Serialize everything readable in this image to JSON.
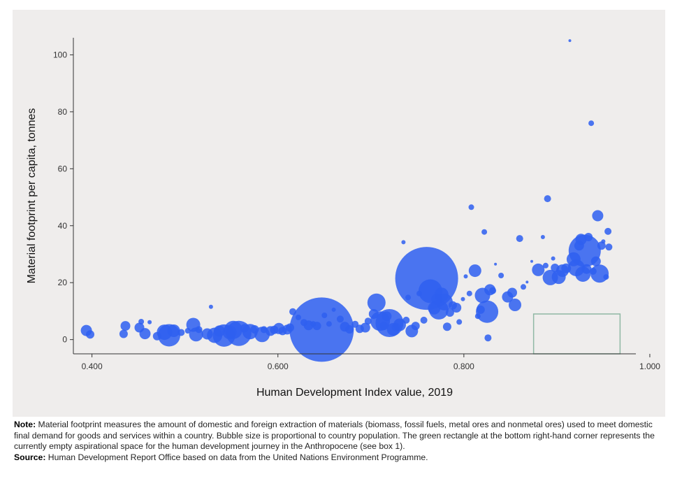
{
  "chart_data": {
    "type": "scatter",
    "xlabel": "Human Development Index value, 2019",
    "ylabel": "Material footprint per capita, tonnes",
    "xlim": [
      0.38,
      0.985
    ],
    "ylim": [
      -5,
      106
    ],
    "xticks": [
      0.4,
      0.6,
      0.8,
      1.0
    ],
    "xtick_labels": [
      "0.400",
      "0.600",
      "0.800",
      "1.000"
    ],
    "yticks": [
      0,
      20,
      40,
      60,
      80,
      100
    ],
    "ytick_labels": [
      "0",
      "20",
      "40",
      "60",
      "80",
      "100"
    ],
    "bubble_color": "#2f5ff0",
    "aspirational_box": {
      "x0": 0.875,
      "x1": 0.968,
      "y0": -5,
      "y1": 9,
      "color": "#8fb8a4"
    },
    "points": [
      {
        "x": 0.394,
        "y": 3.2,
        "r": 8
      },
      {
        "x": 0.398,
        "y": 1.8,
        "r": 6
      },
      {
        "x": 0.434,
        "y": 2.0,
        "r": 6
      },
      {
        "x": 0.436,
        "y": 4.8,
        "r": 7
      },
      {
        "x": 0.451,
        "y": 4.2,
        "r": 7
      },
      {
        "x": 0.453,
        "y": 6.3,
        "r": 4
      },
      {
        "x": 0.457,
        "y": 2.1,
        "r": 8
      },
      {
        "x": 0.462,
        "y": 6.1,
        "r": 3
      },
      {
        "x": 0.47,
        "y": 1.2,
        "r": 6
      },
      {
        "x": 0.478,
        "y": 2.6,
        "r": 11
      },
      {
        "x": 0.483,
        "y": 1.5,
        "r": 16
      },
      {
        "x": 0.488,
        "y": 3.1,
        "r": 9
      },
      {
        "x": 0.496,
        "y": 2.5,
        "r": 5
      },
      {
        "x": 0.503,
        "y": 3.1,
        "r": 4
      },
      {
        "x": 0.509,
        "y": 5.2,
        "r": 10
      },
      {
        "x": 0.512,
        "y": 1.8,
        "r": 10
      },
      {
        "x": 0.515,
        "y": 3.5,
        "r": 5
      },
      {
        "x": 0.524,
        "y": 2.0,
        "r": 8
      },
      {
        "x": 0.528,
        "y": 11.5,
        "r": 3
      },
      {
        "x": 0.532,
        "y": 1.5,
        "r": 11
      },
      {
        "x": 0.537,
        "y": 3.0,
        "r": 8
      },
      {
        "x": 0.542,
        "y": 1.4,
        "r": 16
      },
      {
        "x": 0.548,
        "y": 2.6,
        "r": 10
      },
      {
        "x": 0.552,
        "y": 3.4,
        "r": 13
      },
      {
        "x": 0.558,
        "y": 2.2,
        "r": 18
      },
      {
        "x": 0.564,
        "y": 4.0,
        "r": 6
      },
      {
        "x": 0.57,
        "y": 2.8,
        "r": 11
      },
      {
        "x": 0.575,
        "y": 3.6,
        "r": 6
      },
      {
        "x": 0.583,
        "y": 1.8,
        "r": 11
      },
      {
        "x": 0.585,
        "y": 3.5,
        "r": 5
      },
      {
        "x": 0.592,
        "y": 3.0,
        "r": 7
      },
      {
        "x": 0.596,
        "y": 3.4,
        "r": 6
      },
      {
        "x": 0.601,
        "y": 3.9,
        "r": 8
      },
      {
        "x": 0.605,
        "y": 3.0,
        "r": 6
      },
      {
        "x": 0.61,
        "y": 3.5,
        "r": 7
      },
      {
        "x": 0.613,
        "y": 4.2,
        "r": 6
      },
      {
        "x": 0.616,
        "y": 9.8,
        "r": 5
      },
      {
        "x": 0.622,
        "y": 7.8,
        "r": 4
      },
      {
        "x": 0.628,
        "y": 6.0,
        "r": 5
      },
      {
        "x": 0.633,
        "y": 5.0,
        "r": 7
      },
      {
        "x": 0.638,
        "y": 5.5,
        "r": 4
      },
      {
        "x": 0.642,
        "y": 4.8,
        "r": 6
      },
      {
        "x": 0.647,
        "y": 3.5,
        "r": 46
      },
      {
        "x": 0.65,
        "y": 8.5,
        "r": 4
      },
      {
        "x": 0.655,
        "y": 5.5,
        "r": 4
      },
      {
        "x": 0.66,
        "y": 10.5,
        "r": 3
      },
      {
        "x": 0.667,
        "y": 7.2,
        "r": 5
      },
      {
        "x": 0.672,
        "y": 4.5,
        "r": 7
      },
      {
        "x": 0.677,
        "y": 3.6,
        "r": 6
      },
      {
        "x": 0.683,
        "y": 5.4,
        "r": 5
      },
      {
        "x": 0.688,
        "y": 3.8,
        "r": 6
      },
      {
        "x": 0.694,
        "y": 4.2,
        "r": 7
      },
      {
        "x": 0.697,
        "y": 6.5,
        "r": 5
      },
      {
        "x": 0.703,
        "y": 9.0,
        "r": 7
      },
      {
        "x": 0.706,
        "y": 13.0,
        "r": 13
      },
      {
        "x": 0.71,
        "y": 6.5,
        "r": 14
      },
      {
        "x": 0.714,
        "y": 4.8,
        "r": 6
      },
      {
        "x": 0.717,
        "y": 8.2,
        "r": 7
      },
      {
        "x": 0.72,
        "y": 5.8,
        "r": 20
      },
      {
        "x": 0.724,
        "y": 3.6,
        "r": 9
      },
      {
        "x": 0.727,
        "y": 4.4,
        "r": 6
      },
      {
        "x": 0.731,
        "y": 5.2,
        "r": 9
      },
      {
        "x": 0.735,
        "y": 34.2,
        "r": 3
      },
      {
        "x": 0.738,
        "y": 6.8,
        "r": 5
      },
      {
        "x": 0.74,
        "y": 14.8,
        "r": 4
      },
      {
        "x": 0.744,
        "y": 3.0,
        "r": 9
      },
      {
        "x": 0.748,
        "y": 4.8,
        "r": 6
      },
      {
        "x": 0.752,
        "y": 16.2,
        "r": 4
      },
      {
        "x": 0.757,
        "y": 6.8,
        "r": 5
      },
      {
        "x": 0.76,
        "y": 21.5,
        "r": 45
      },
      {
        "x": 0.764,
        "y": 17.0,
        "r": 17
      },
      {
        "x": 0.768,
        "y": 11.0,
        "r": 9
      },
      {
        "x": 0.771,
        "y": 14.2,
        "r": 8
      },
      {
        "x": 0.773,
        "y": 10.5,
        "r": 14
      },
      {
        "x": 0.776,
        "y": 15.8,
        "r": 10
      },
      {
        "x": 0.779,
        "y": 13.2,
        "r": 12
      },
      {
        "x": 0.782,
        "y": 4.5,
        "r": 6
      },
      {
        "x": 0.785,
        "y": 9.5,
        "r": 6
      },
      {
        "x": 0.788,
        "y": 12.0,
        "r": 6
      },
      {
        "x": 0.792,
        "y": 11.2,
        "r": 7
      },
      {
        "x": 0.795,
        "y": 6.2,
        "r": 4
      },
      {
        "x": 0.799,
        "y": 14.2,
        "r": 3
      },
      {
        "x": 0.802,
        "y": 22.2,
        "r": 3
      },
      {
        "x": 0.806,
        "y": 16.2,
        "r": 4
      },
      {
        "x": 0.808,
        "y": 46.5,
        "r": 4
      },
      {
        "x": 0.812,
        "y": 24.2,
        "r": 9
      },
      {
        "x": 0.815,
        "y": 8.2,
        "r": 4
      },
      {
        "x": 0.818,
        "y": 10.5,
        "r": 6
      },
      {
        "x": 0.82,
        "y": 15.5,
        "r": 11
      },
      {
        "x": 0.822,
        "y": 37.8,
        "r": 4
      },
      {
        "x": 0.825,
        "y": 9.8,
        "r": 16
      },
      {
        "x": 0.826,
        "y": 0.6,
        "r": 5
      },
      {
        "x": 0.828,
        "y": 17.5,
        "r": 8
      },
      {
        "x": 0.831,
        "y": 17.2,
        "r": 5
      },
      {
        "x": 0.834,
        "y": 26.5,
        "r": 2
      },
      {
        "x": 0.84,
        "y": 22.5,
        "r": 4
      },
      {
        "x": 0.847,
        "y": 15.0,
        "r": 8
      },
      {
        "x": 0.852,
        "y": 16.5,
        "r": 7
      },
      {
        "x": 0.855,
        "y": 12.2,
        "r": 9
      },
      {
        "x": 0.86,
        "y": 35.5,
        "r": 5
      },
      {
        "x": 0.864,
        "y": 18.5,
        "r": 4
      },
      {
        "x": 0.868,
        "y": 20.2,
        "r": 2
      },
      {
        "x": 0.873,
        "y": 27.5,
        "r": 2
      },
      {
        "x": 0.88,
        "y": 24.5,
        "r": 9
      },
      {
        "x": 0.885,
        "y": 36.0,
        "r": 3
      },
      {
        "x": 0.888,
        "y": 26.0,
        "r": 4
      },
      {
        "x": 0.89,
        "y": 49.5,
        "r": 5
      },
      {
        "x": 0.893,
        "y": 21.8,
        "r": 11
      },
      {
        "x": 0.896,
        "y": 28.5,
        "r": 3
      },
      {
        "x": 0.898,
        "y": 25.2,
        "r": 6
      },
      {
        "x": 0.902,
        "y": 22.0,
        "r": 10
      },
      {
        "x": 0.906,
        "y": 24.2,
        "r": 9
      },
      {
        "x": 0.91,
        "y": 25.0,
        "r": 7
      },
      {
        "x": 0.914,
        "y": 105.0,
        "r": 2
      },
      {
        "x": 0.918,
        "y": 28.2,
        "r": 10
      },
      {
        "x": 0.921,
        "y": 25.2,
        "r": 12
      },
      {
        "x": 0.924,
        "y": 33.0,
        "r": 7
      },
      {
        "x": 0.926,
        "y": 35.2,
        "r": 8
      },
      {
        "x": 0.928,
        "y": 23.0,
        "r": 11
      },
      {
        "x": 0.93,
        "y": 31.2,
        "r": 23
      },
      {
        "x": 0.932,
        "y": 24.8,
        "r": 7
      },
      {
        "x": 0.934,
        "y": 36.0,
        "r": 6
      },
      {
        "x": 0.937,
        "y": 76.0,
        "r": 4
      },
      {
        "x": 0.939,
        "y": 24.0,
        "r": 5
      },
      {
        "x": 0.942,
        "y": 27.5,
        "r": 7
      },
      {
        "x": 0.944,
        "y": 43.5,
        "r": 8
      },
      {
        "x": 0.946,
        "y": 23.2,
        "r": 13
      },
      {
        "x": 0.948,
        "y": 33.0,
        "r": 6
      },
      {
        "x": 0.95,
        "y": 34.5,
        "r": 3
      },
      {
        "x": 0.953,
        "y": 22.0,
        "r": 4
      },
      {
        "x": 0.955,
        "y": 38.0,
        "r": 5
      },
      {
        "x": 0.956,
        "y": 32.5,
        "r": 5
      }
    ]
  },
  "note": {
    "note_label": "Note:",
    "note_text": " Material footprint measures the amount of domestic and foreign extraction of materials (biomass, fossil fuels, metal ores and nonmetal ores) used to meet domestic final demand for goods and services within a country. Bubble size is proportional to country population. The green rectangle at the bottom right-hand corner represents the currently empty aspirational space for the human development journey in the Anthropocene (see box 1).",
    "source_label": "Source:",
    "source_text": " Human Development Report Office based on data from the United Nations Environment Programme."
  }
}
